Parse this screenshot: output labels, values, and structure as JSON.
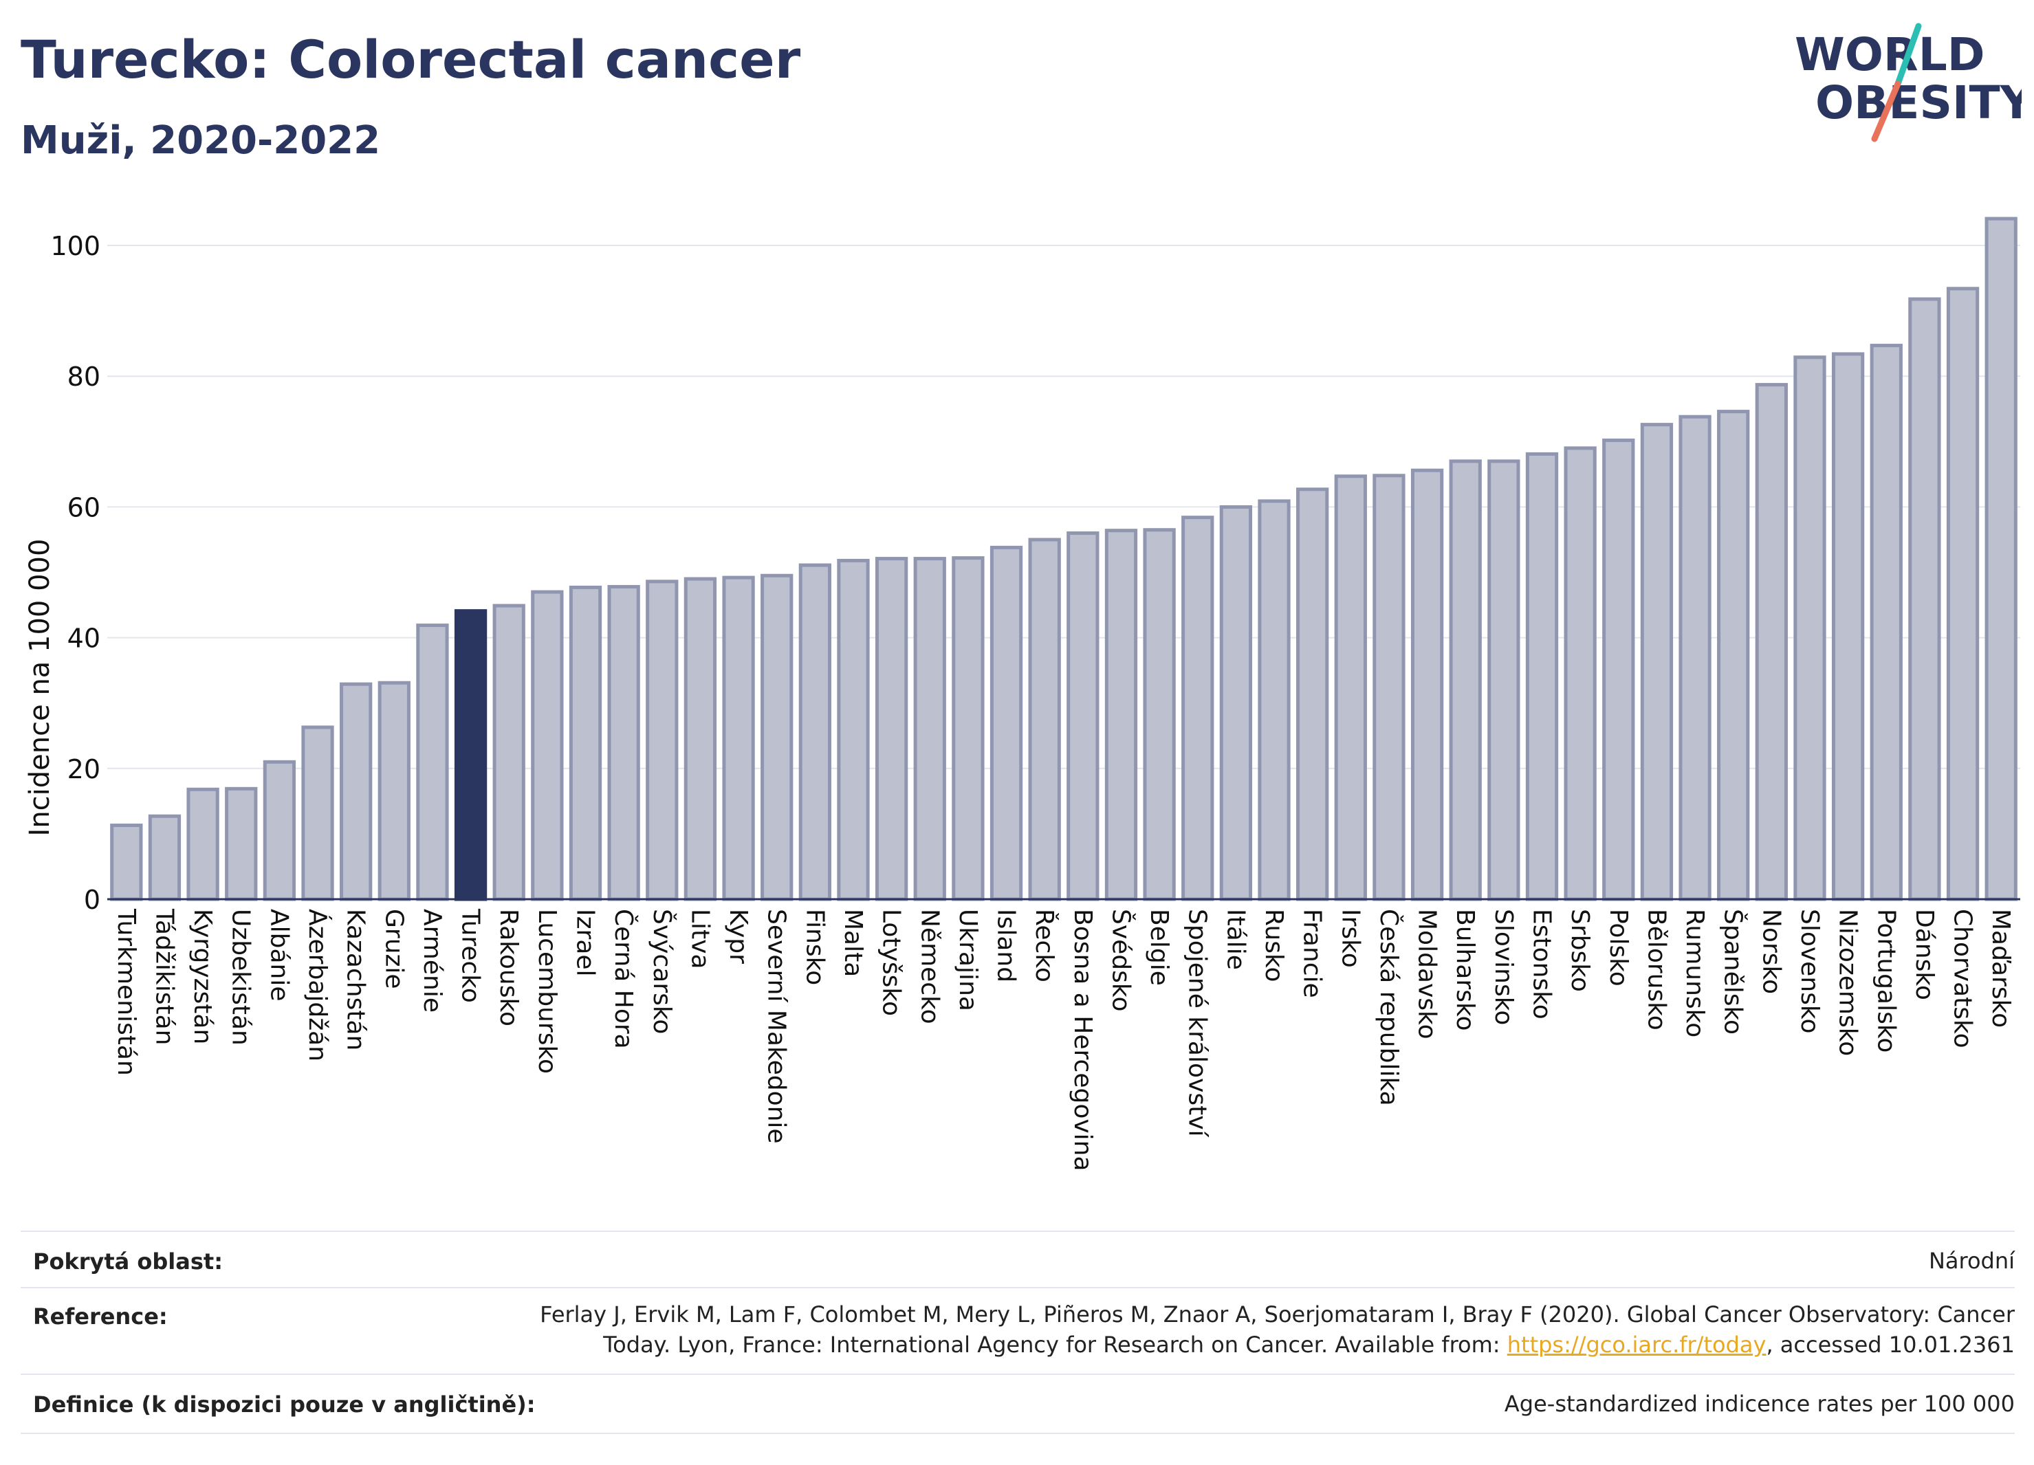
{
  "header": {
    "title": "Turecko: Colorectal cancer",
    "subtitle": "Muži, 2020-2022"
  },
  "logo": {
    "line1": "WORLD",
    "line2": "OBESITY"
  },
  "colors": {
    "bar": "#bcc0cf",
    "bar_stroke": "#9096b0",
    "highlight": "#2a3560",
    "text": "#2a3560"
  },
  "chart_data": {
    "type": "bar",
    "ylabel": "Incidence na 100 000",
    "ylim": [
      0,
      106
    ],
    "yticks": [
      0,
      20,
      40,
      60,
      80,
      100
    ],
    "grid": true,
    "highlight": "Turecko",
    "categories": [
      "Turkmenistán",
      "Tádžikistán",
      "Kyrgyzstán",
      "Uzbekistán",
      "Albánie",
      "Ázerbajdžán",
      "Kazachstán",
      "Gruzie",
      "Arménie",
      "Turecko",
      "Rakousko",
      "Lucembursko",
      "Izrael",
      "Černá Hora",
      "Švýcarsko",
      "Litva",
      "Kypr",
      "Severní Makedonie",
      "Finsko",
      "Malta",
      "Lotyšsko",
      "Německo",
      "Ukrajina",
      "Island",
      "Řecko",
      "Bosna a Hercegovina",
      "Švédsko",
      "Belgie",
      "Spojené království",
      "Itálie",
      "Rusko",
      "Francie",
      "Irsko",
      "Česká republika",
      "Moldavsko",
      "Bulharsko",
      "Slovinsko",
      "Estonsko",
      "Srbsko",
      "Polsko",
      "Bělorusko",
      "Rumunsko",
      "Španělsko",
      "Norsko",
      "Slovensko",
      "Nizozemsko",
      "Portugalsko",
      "Dánsko",
      "Chorvatsko",
      "Maďarsko"
    ],
    "values": [
      11.3,
      12.7,
      16.8,
      16.9,
      21.0,
      26.3,
      32.9,
      33.1,
      41.9,
      44.1,
      44.9,
      47.0,
      47.7,
      47.8,
      48.6,
      49.0,
      49.2,
      49.5,
      51.1,
      51.8,
      52.1,
      52.1,
      52.2,
      53.8,
      55.0,
      56.0,
      56.4,
      56.5,
      58.4,
      60.0,
      60.9,
      62.7,
      64.7,
      64.8,
      65.6,
      67.0,
      67.0,
      68.1,
      69.0,
      70.2,
      72.6,
      73.8,
      74.6,
      78.7,
      82.9,
      83.4,
      84.7,
      91.8,
      93.4,
      104.1
    ]
  },
  "info": {
    "rows": [
      {
        "key": "Pokrytá oblast:",
        "value": "Národní"
      },
      {
        "key": "Reference:",
        "value_line1": "Ferlay J, Ervik M, Lam F, Colombet M, Mery L, Piñeros M, Znaor A, Soerjomataram I, Bray F (2020). Global Cancer Observatory: Cancer",
        "value_line2_pre": "Today. Lyon, France: International Agency for Research on Cancer. Available from: ",
        "value_link": "https://gco.iarc.fr/today",
        "value_line2_post": ", accessed 10.01.2361"
      },
      {
        "key": "Definice (k dispozici pouze v angličtině):",
        "value": "Age-standardized indicence rates per 100 000"
      }
    ]
  }
}
